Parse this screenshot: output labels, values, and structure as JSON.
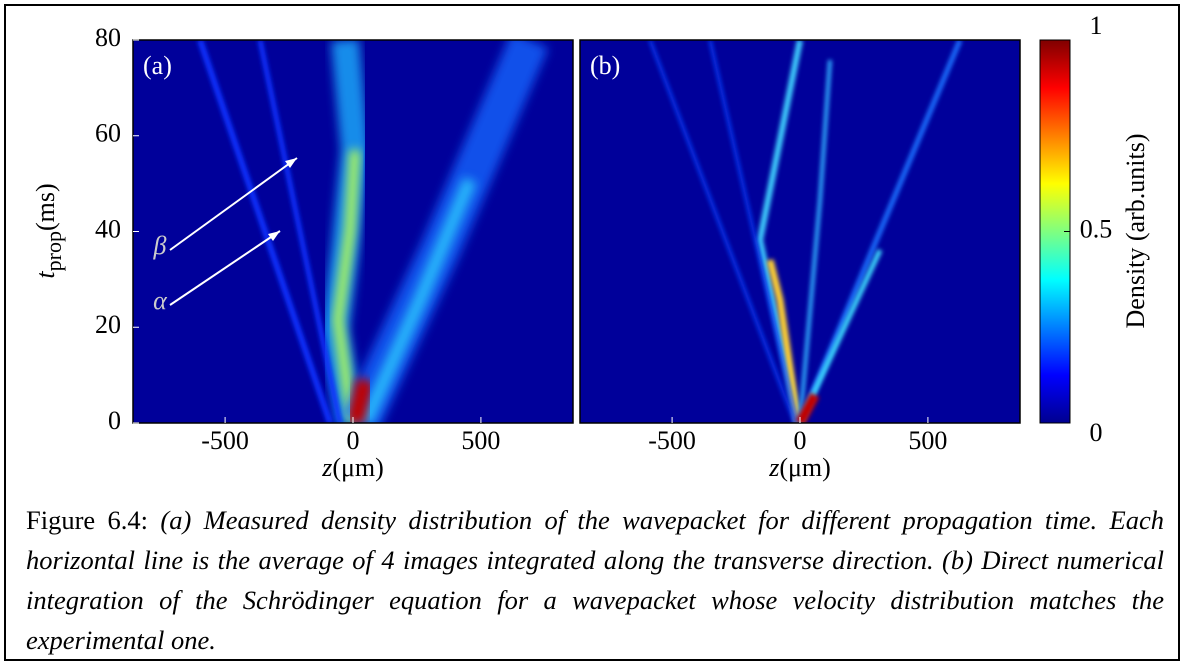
{
  "chart_data": [
    {
      "type": "heatmap",
      "panel_label": "(a)",
      "xlim": [
        -860,
        860
      ],
      "xticks": [
        -500,
        0,
        500
      ],
      "xlabel": {
        "var": "z",
        "unit": "(μm)"
      },
      "ylim": [
        0,
        80
      ],
      "yticks": [
        0,
        20,
        40,
        60,
        80
      ],
      "ylabel": {
        "var": "t",
        "sub": "prop",
        "unit": "(ms)"
      },
      "annotations": [
        "β",
        "α"
      ]
    },
    {
      "type": "heatmap",
      "panel_label": "(b)",
      "xlim": [
        -860,
        860
      ],
      "xticks": [
        -500,
        0,
        500
      ],
      "xlabel": {
        "var": "z",
        "unit": "(μm)"
      },
      "ylim": [
        0,
        80
      ]
    }
  ],
  "colorbar": {
    "label": "Density (arb.units)",
    "lim": [
      0,
      1
    ],
    "ticks": [
      0,
      0.5,
      1
    ]
  },
  "caption": {
    "label": "Figure 6.4:",
    "text": "(a) Measured density distribution of the wavepacket for different propagation time. Each horizontal line is the average of 4 images integrated along the transverse direction. (b) Direct numerical integration of the Schrödinger equation for a wavepacket whose velocity distribution matches the experimental one."
  }
}
